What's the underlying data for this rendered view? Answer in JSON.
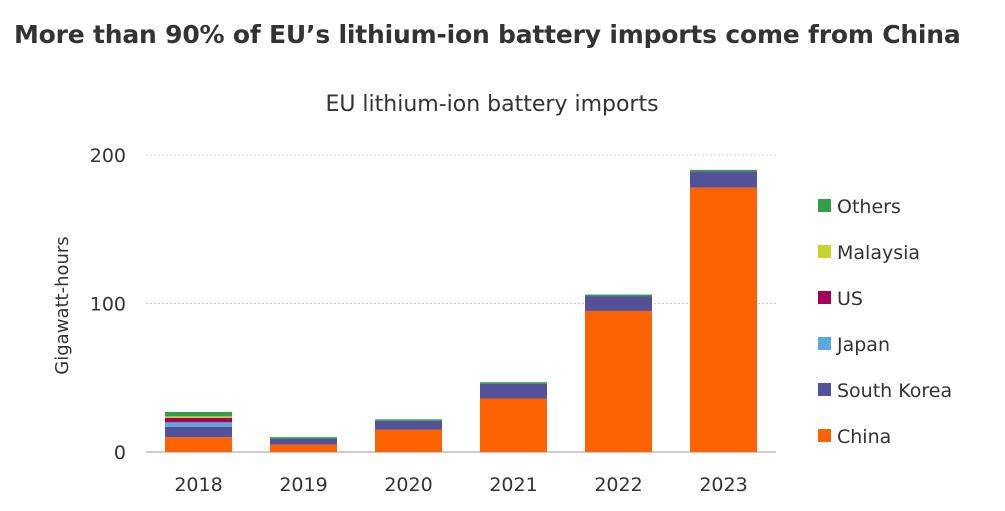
{
  "page": {
    "title": "More than 90% of EU’s lithium-ion battery imports come from China"
  },
  "chart_data": {
    "type": "bar",
    "stacked": true,
    "title": "EU lithium-ion battery imports",
    "xlabel": "",
    "ylabel": "Gigawatt-hours",
    "ylim": [
      0,
      200
    ],
    "yticks": [
      0,
      100,
      200
    ],
    "grid": true,
    "legend_position": "right",
    "categories": [
      "2018",
      "2019",
      "2020",
      "2021",
      "2022",
      "2023"
    ],
    "series": [
      {
        "name": "China",
        "color": "#ff6200",
        "values": [
          10,
          5,
          15,
          36,
          95,
          178
        ]
      },
      {
        "name": "South Korea",
        "color": "#525199",
        "values": [
          7,
          4,
          6,
          10,
          10,
          11
        ]
      },
      {
        "name": "Japan",
        "color": "#5ba8dd",
        "values": [
          3,
          0,
          0,
          0,
          0,
          0
        ]
      },
      {
        "name": "US",
        "color": "#a6005b",
        "values": [
          3,
          0,
          0,
          0,
          0,
          0
        ]
      },
      {
        "name": "Malaysia",
        "color": "#c8d52d",
        "values": [
          1,
          0,
          0,
          0,
          0,
          0
        ]
      },
      {
        "name": "Others",
        "color": "#349d48",
        "values": [
          3,
          1,
          1,
          1,
          1,
          1
        ]
      }
    ]
  }
}
